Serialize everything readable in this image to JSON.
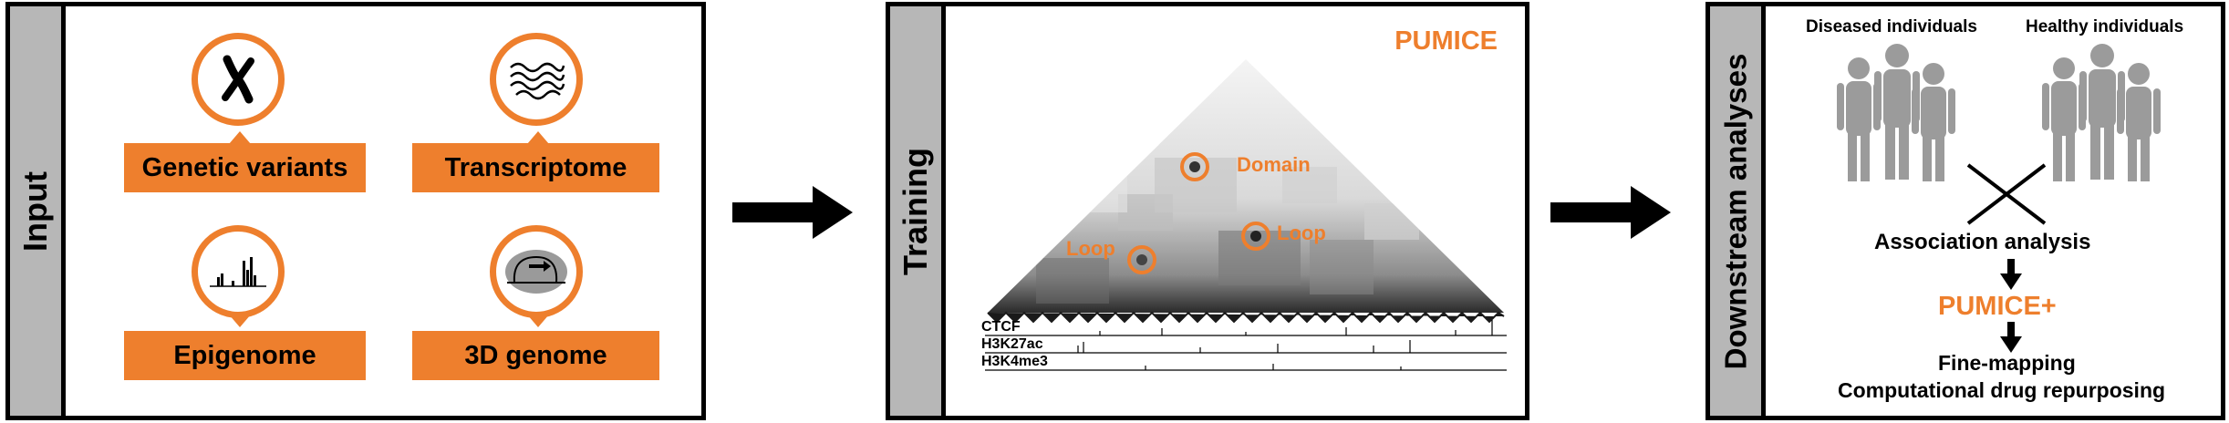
{
  "input_panel": {
    "side_label": "Input",
    "items": [
      {
        "label": "Genetic variants",
        "icon": "chromosome-icon"
      },
      {
        "label": "Transcriptome",
        "icon": "rna-waves-icon"
      },
      {
        "label": "Epigenome",
        "icon": "peaks-icon"
      },
      {
        "label": "3D genome",
        "icon": "chromatin-loop-icon"
      }
    ]
  },
  "training_panel": {
    "side_label": "Training",
    "title": "PUMICE",
    "annotations": {
      "domain": "Domain",
      "loop_left": "Loop",
      "loop_right": "Loop"
    },
    "tracks": [
      "CTCF",
      "H3K27ac",
      "H3K4me3"
    ]
  },
  "downstream_panel": {
    "side_label": "Downstream analyses",
    "group_left": "Diseased individuals",
    "group_right": "Healthy individuals",
    "step1": "Association analysis",
    "step2": "PUMICE+",
    "step3a": "Fine-mapping",
    "step3b": "Computational drug repurposing"
  },
  "colors": {
    "accent": "#ee7f2d",
    "side_bar": "#b7b7b7"
  }
}
